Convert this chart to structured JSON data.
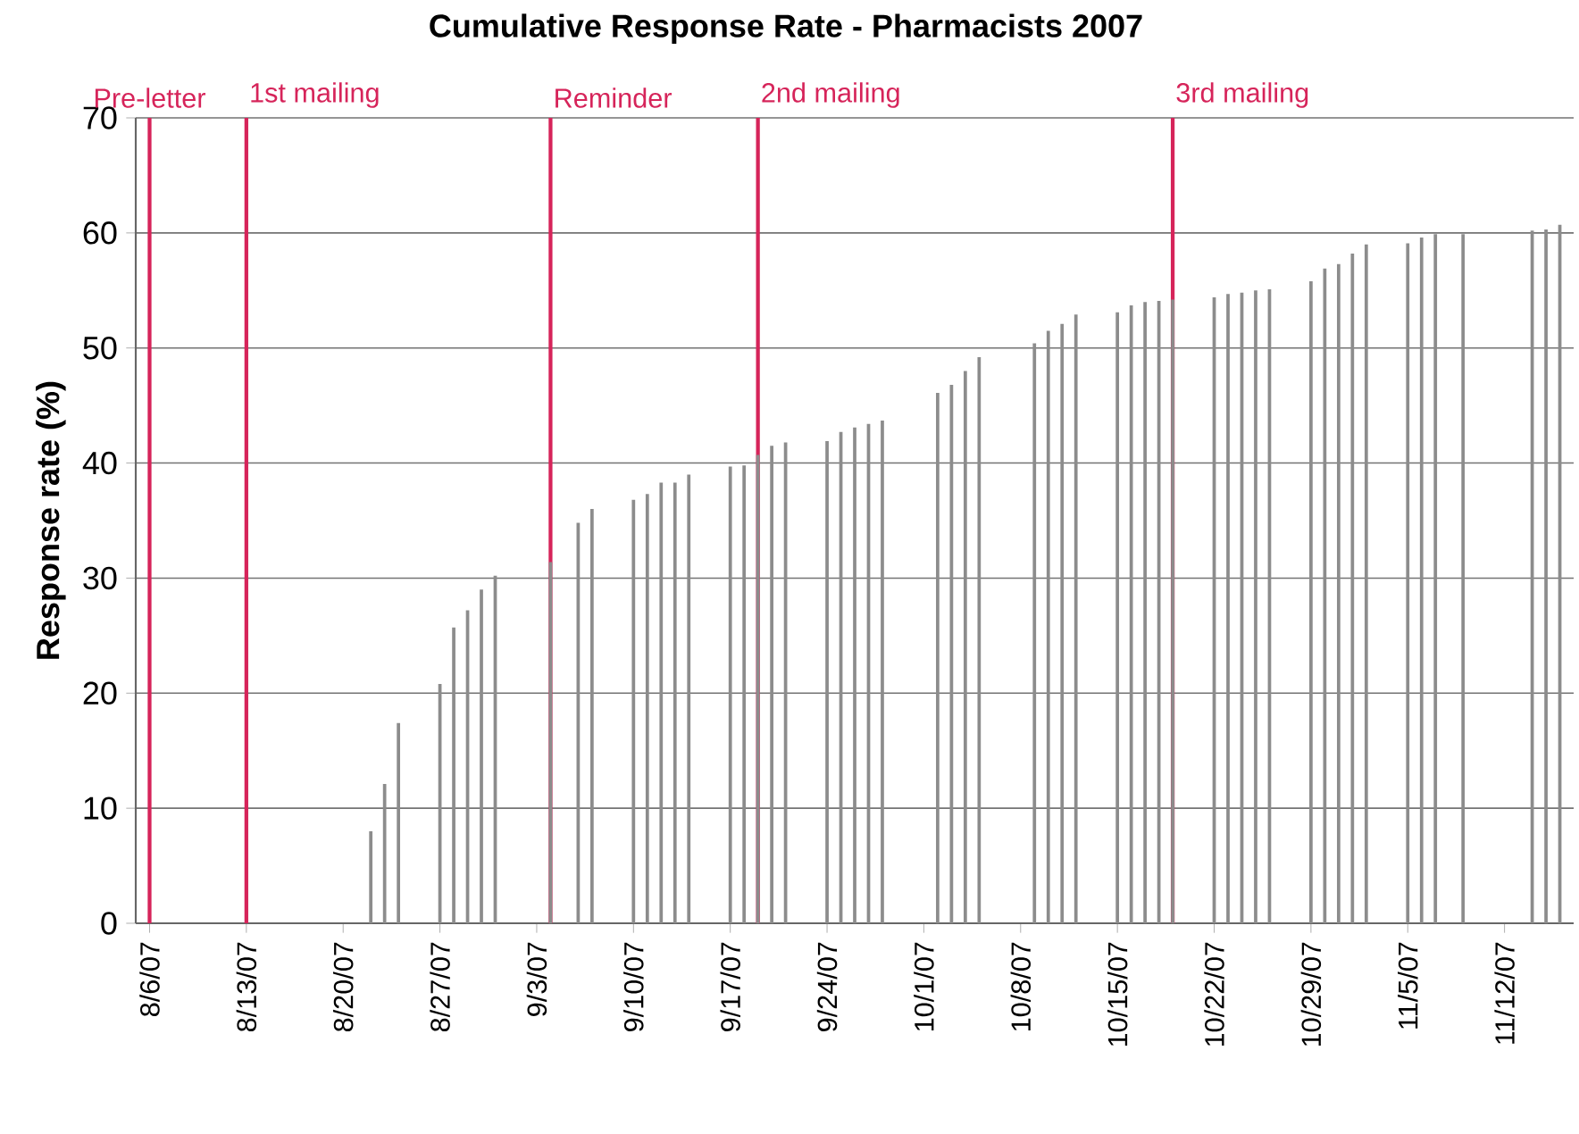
{
  "chart_data": {
    "type": "bar",
    "title": "Cumulative Response Rate - Pharmacists 2007",
    "ylabel": "Response rate (%)",
    "color": "#8c8c8c",
    "grid": "y",
    "x": [
      "2007-08-22",
      "2007-08-23",
      "2007-08-24",
      "2007-08-27",
      "2007-08-28",
      "2007-08-29",
      "2007-08-30",
      "2007-08-31",
      "2007-09-04",
      "2007-09-06",
      "2007-09-07",
      "2007-09-10",
      "2007-09-11",
      "2007-09-12",
      "2007-09-13",
      "2007-09-14",
      "2007-09-17",
      "2007-09-18",
      "2007-09-19",
      "2007-09-20",
      "2007-09-21",
      "2007-09-24",
      "2007-09-25",
      "2007-09-26",
      "2007-09-27",
      "2007-09-28",
      "2007-10-02",
      "2007-10-03",
      "2007-10-04",
      "2007-10-05",
      "2007-10-09",
      "2007-10-10",
      "2007-10-11",
      "2007-10-12",
      "2007-10-15",
      "2007-10-16",
      "2007-10-17",
      "2007-10-18",
      "2007-10-19",
      "2007-10-22",
      "2007-10-23",
      "2007-10-24",
      "2007-10-25",
      "2007-10-26",
      "2007-10-29",
      "2007-10-30",
      "2007-10-31",
      "2007-11-01",
      "2007-11-02",
      "2007-11-05",
      "2007-11-06",
      "2007-11-07",
      "2007-11-09",
      "2007-11-14",
      "2007-11-15",
      "2007-11-16"
    ],
    "values": [
      8.0,
      12.1,
      17.4,
      20.8,
      25.7,
      27.2,
      29.0,
      30.2,
      31.4,
      34.8,
      36.0,
      36.8,
      37.3,
      38.3,
      38.3,
      39.0,
      39.7,
      39.8,
      40.7,
      41.5,
      41.8,
      41.9,
      42.7,
      43.1,
      43.4,
      43.7,
      46.1,
      46.8,
      48.0,
      49.2,
      50.4,
      51.5,
      52.1,
      52.9,
      53.1,
      53.7,
      54.0,
      54.1,
      54.2,
      54.4,
      54.7,
      54.8,
      55.0,
      55.1,
      55.8,
      56.9,
      57.3,
      58.2,
      59.0,
      59.1,
      59.6,
      59.9,
      59.9,
      60.2,
      60.3,
      60.7
    ],
    "xlim": [
      "2007-08-05",
      "2007-11-17"
    ],
    "xticks": [
      {
        "value": "2007-08-06",
        "label": "8/6/07"
      },
      {
        "value": "2007-08-13",
        "label": "8/13/07"
      },
      {
        "value": "2007-08-20",
        "label": "8/20/07"
      },
      {
        "value": "2007-08-27",
        "label": "8/27/07"
      },
      {
        "value": "2007-09-03",
        "label": "9/3/07"
      },
      {
        "value": "2007-09-10",
        "label": "9/10/07"
      },
      {
        "value": "2007-09-17",
        "label": "9/17/07"
      },
      {
        "value": "2007-09-24",
        "label": "9/24/07"
      },
      {
        "value": "2007-10-01",
        "label": "10/1/07"
      },
      {
        "value": "2007-10-08",
        "label": "10/8/07"
      },
      {
        "value": "2007-10-15",
        "label": "10/15/07"
      },
      {
        "value": "2007-10-22",
        "label": "10/22/07"
      },
      {
        "value": "2007-10-29",
        "label": "10/29/07"
      },
      {
        "value": "2007-11-05",
        "label": "11/5/07"
      },
      {
        "value": "2007-11-12",
        "label": "11/12/07"
      }
    ],
    "ylim": [
      0,
      70
    ],
    "yticks": [
      0,
      10,
      20,
      30,
      40,
      50,
      60,
      70
    ],
    "ref_lines": [
      {
        "axis": "x",
        "value": "2007-08-06",
        "label": "Pre-letter",
        "color": "#d6245a"
      },
      {
        "axis": "x",
        "value": "2007-08-13",
        "label": "1st mailing",
        "color": "#d6245a"
      },
      {
        "axis": "x",
        "value": "2007-09-04",
        "label": "Reminder",
        "color": "#d6245a"
      },
      {
        "axis": "x",
        "value": "2007-09-19",
        "label": "2nd mailing",
        "color": "#d6245a"
      },
      {
        "axis": "x",
        "value": "2007-10-19",
        "label": "3rd mailing",
        "color": "#d6245a"
      }
    ]
  }
}
